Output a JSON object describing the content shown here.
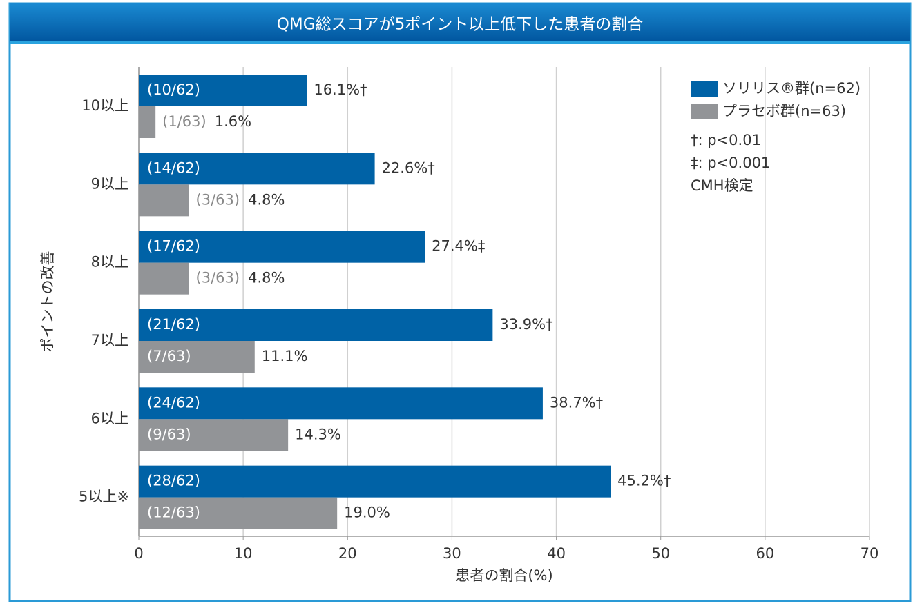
{
  "chart_data": {
    "type": "bar",
    "orientation": "horizontal",
    "title": "QMG総スコアが5ポイント以上低下した患者の割合",
    "xlabel": "患者の割合(%)",
    "ylabel": "ポイントの改善",
    "categories": [
      "10以上",
      "9以上",
      "8以上",
      "7以上",
      "6以上",
      "5以上※"
    ],
    "series": [
      {
        "name": "ソリリス®群(n=62)",
        "color": "#0062a6",
        "values": [
          16.1,
          22.6,
          27.4,
          33.9,
          38.7,
          45.2
        ],
        "value_labels": [
          "16.1%†",
          "22.6%†",
          "27.4%‡",
          "33.9%†",
          "38.7%†",
          "45.2%†"
        ],
        "count_labels": [
          "(10/62)",
          "(14/62)",
          "(17/62)",
          "(21/62)",
          "(24/62)",
          "(28/62)"
        ]
      },
      {
        "name": "プラセボ群(n=63)",
        "color": "#929497",
        "values": [
          1.6,
          4.8,
          4.8,
          11.1,
          14.3,
          19.0
        ],
        "value_labels": [
          "1.6%",
          "4.8%",
          "4.8%",
          "11.1%",
          "14.3%",
          "19.0%"
        ],
        "count_labels": [
          "(1/63)",
          "(3/63)",
          "(3/63)",
          "(7/63)",
          "(9/63)",
          "(12/63)"
        ]
      }
    ],
    "annotations": [
      "†: p<0.01",
      "‡: p<0.001",
      "CMH検定"
    ],
    "xlim": [
      0,
      70
    ],
    "xticks": [
      0,
      10,
      20,
      30,
      40,
      50,
      60,
      70
    ],
    "grid": true,
    "legend": "upper right"
  }
}
